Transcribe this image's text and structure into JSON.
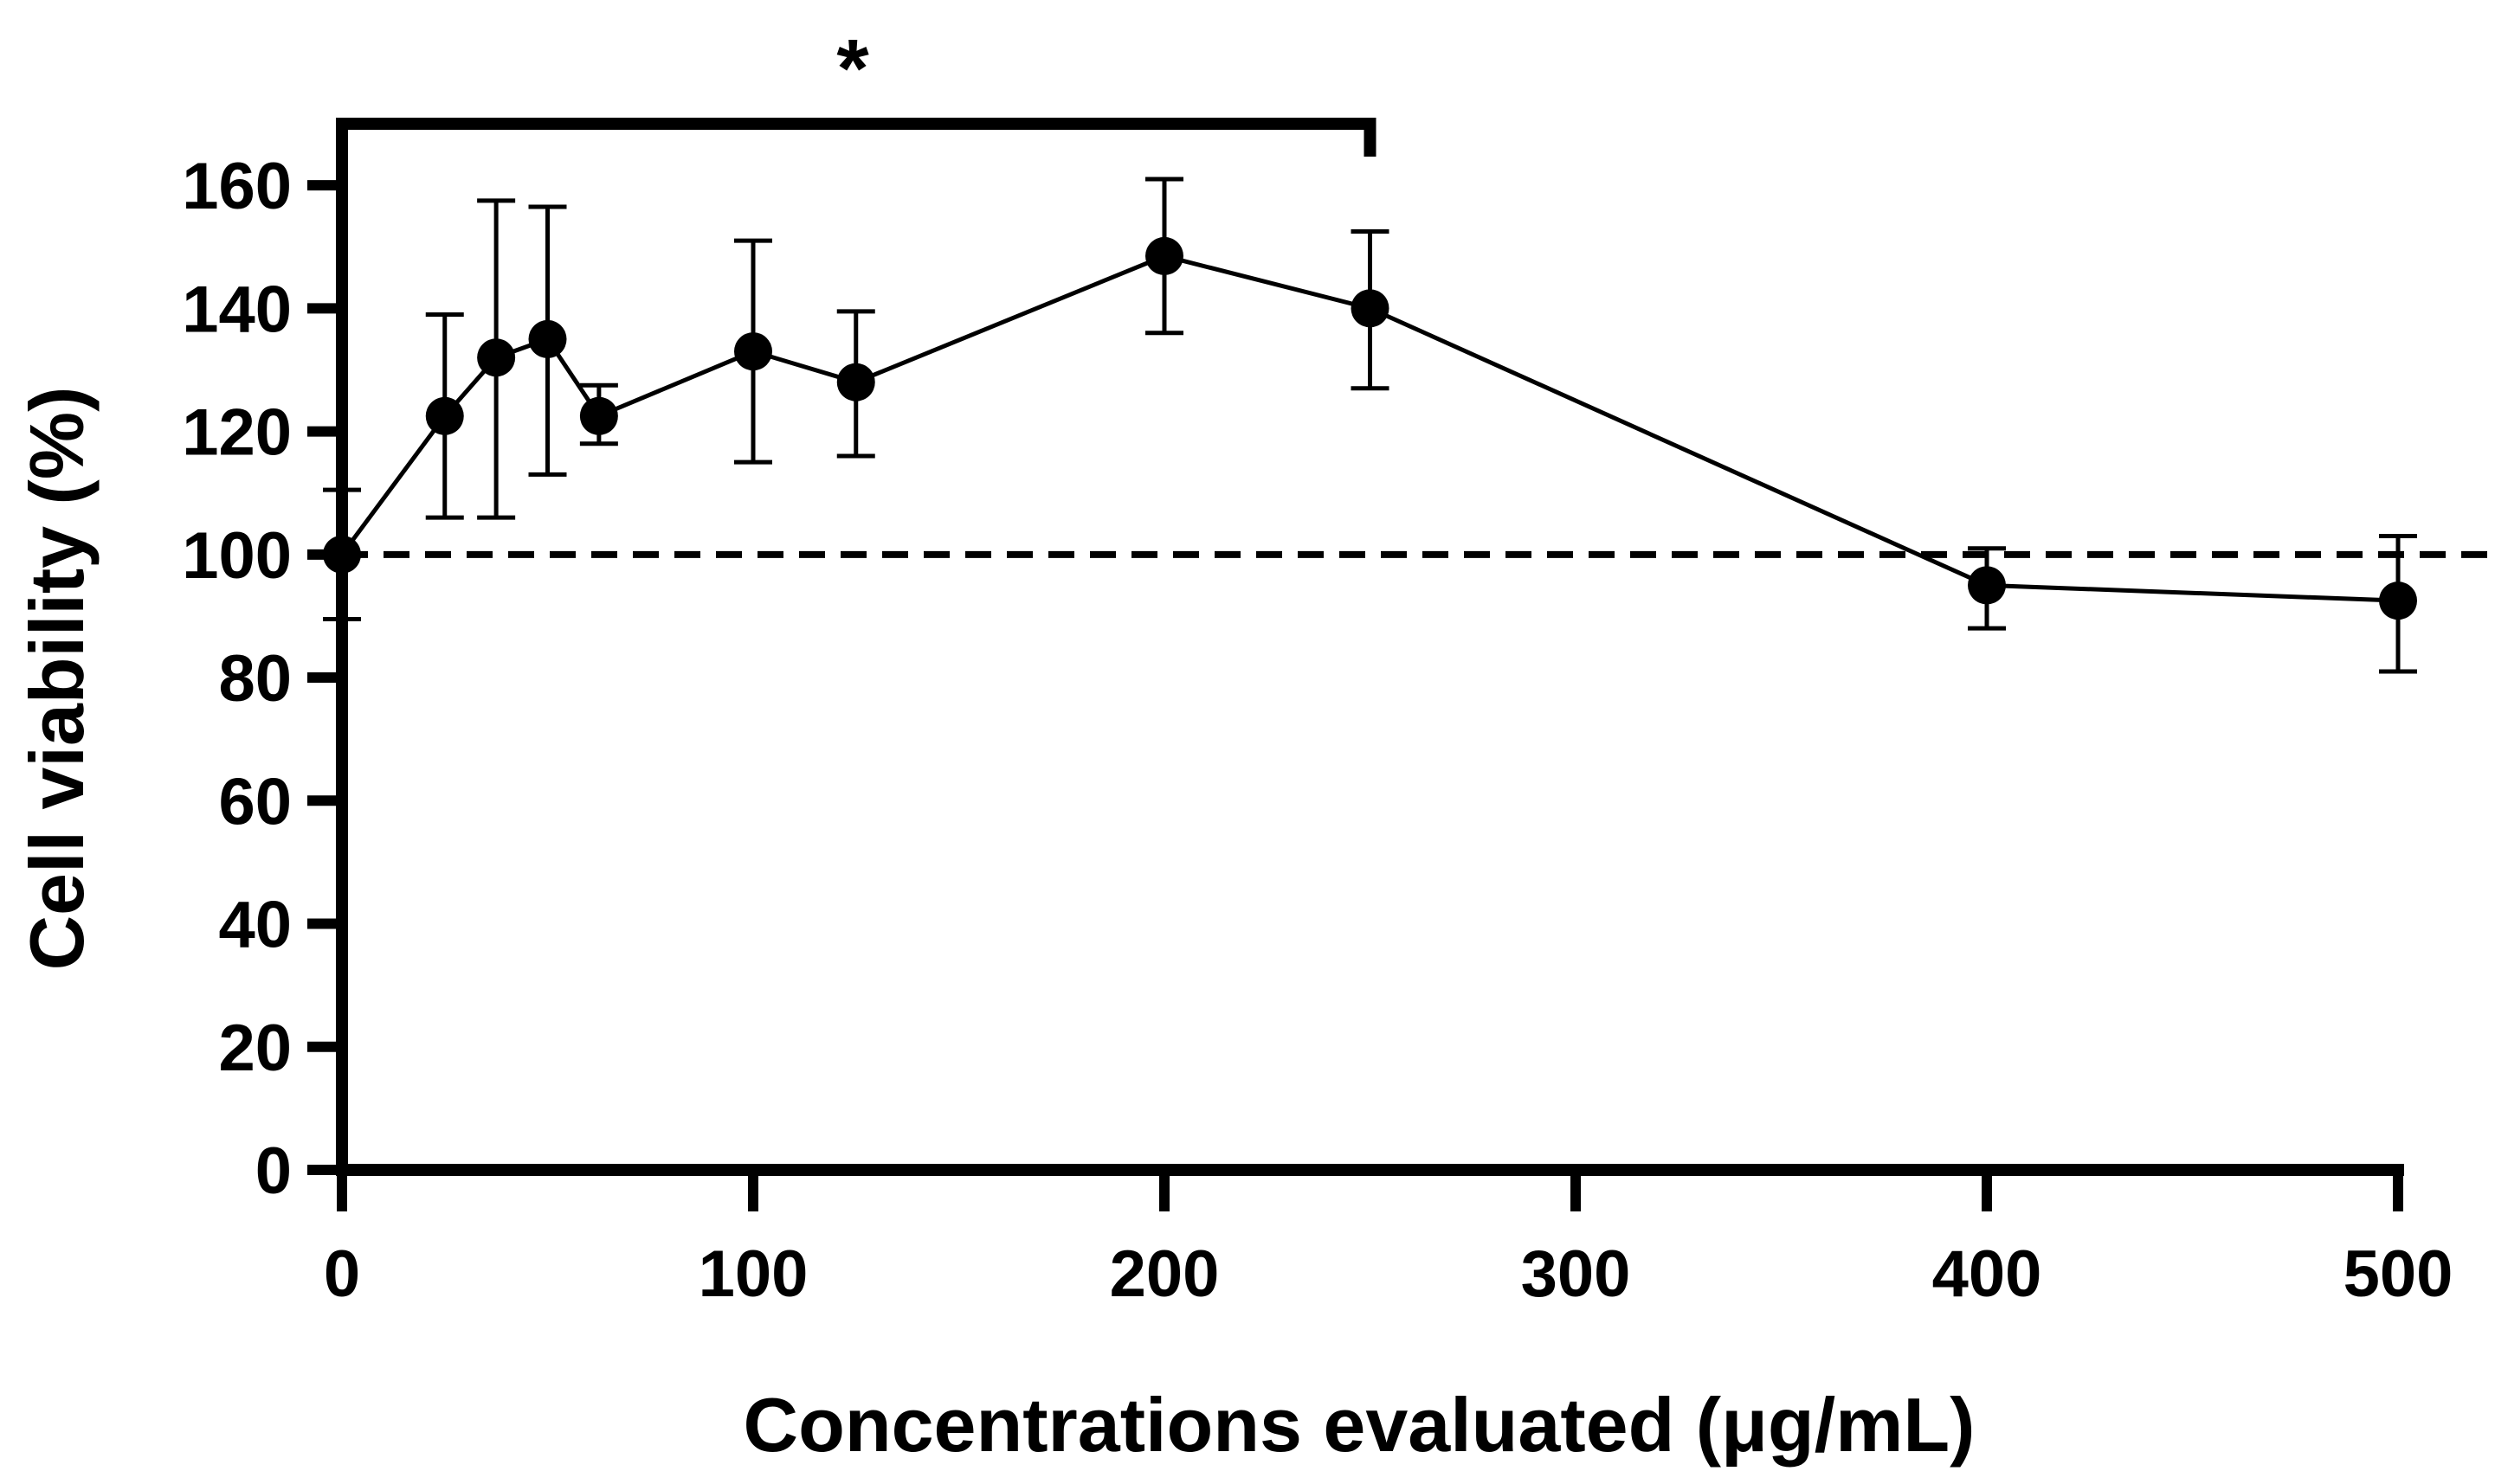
{
  "chart_data": {
    "type": "line",
    "title": "",
    "xlabel": "Concentrations evaluated (μg/mL)",
    "ylabel": "Cell viability (%)",
    "xlim": [
      0,
      500
    ],
    "ylim": [
      0,
      170
    ],
    "x_ticks": [
      0,
      100,
      200,
      300,
      400,
      500
    ],
    "y_ticks": [
      0,
      20,
      40,
      60,
      80,
      100,
      120,
      140,
      160
    ],
    "grid": false,
    "reference_line": {
      "y": 100,
      "style": "dashed"
    },
    "significance": {
      "label": "*",
      "x_start": 0,
      "x_end": 250
    },
    "series": [
      {
        "name": "Cell viability",
        "color": "#000000",
        "x": [
          0,
          25,
          37.5,
          50,
          62.5,
          100,
          125,
          200,
          250,
          400,
          500
        ],
        "y": [
          100,
          122.5,
          132,
          135,
          122.5,
          133,
          128,
          148.5,
          140,
          95,
          92.5
        ],
        "err_upper": [
          110.5,
          139,
          157.5,
          156.5,
          127.5,
          151,
          139.5,
          161,
          152.5,
          101,
          103
        ],
        "err_lower": [
          89.5,
          106,
          106,
          113,
          118,
          115,
          116,
          136,
          127,
          88,
          81
        ]
      }
    ]
  }
}
